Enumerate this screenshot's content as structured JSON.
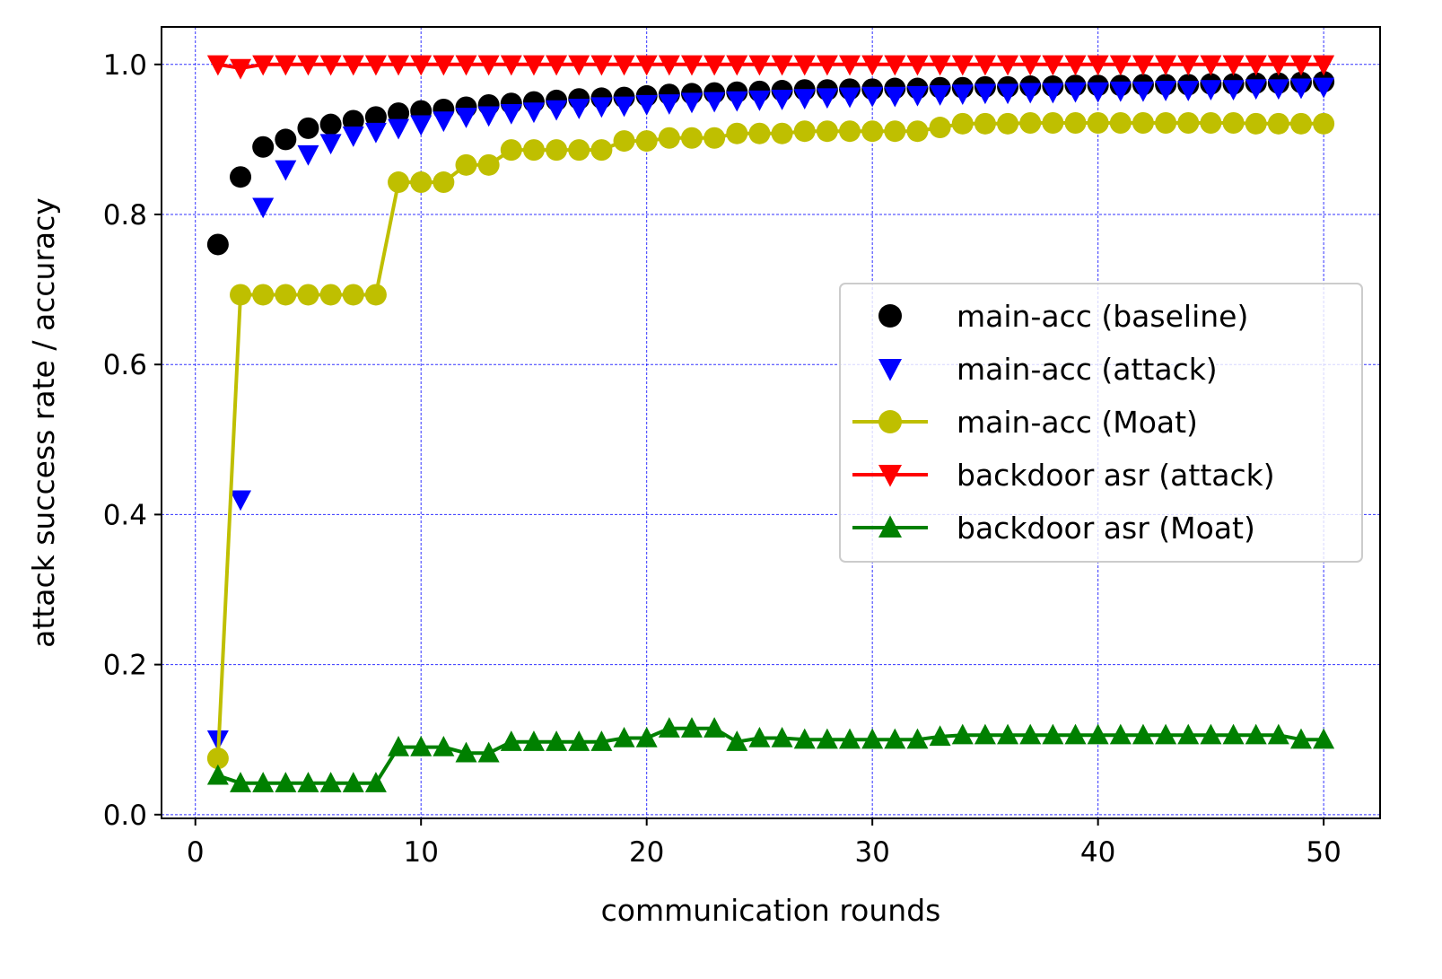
{
  "chart_data": {
    "type": "line",
    "title": "",
    "xlabel": "communication rounds",
    "ylabel": "attack success rate / accuracy",
    "xlim": [
      -1.5,
      52.5
    ],
    "ylim": [
      -0.005,
      1.05
    ],
    "xticks": [
      0,
      10,
      20,
      30,
      40,
      50
    ],
    "yticks": [
      0.0,
      0.2,
      0.4,
      0.6,
      0.8,
      1.0
    ],
    "xtick_labels": [
      "0",
      "10",
      "20",
      "30",
      "40",
      "50"
    ],
    "ytick_labels": [
      "0.0",
      "0.2",
      "0.4",
      "0.6",
      "0.8",
      "1.0"
    ],
    "grid": true,
    "grid_color": "#0000ff",
    "legend_position": "center-right",
    "x": [
      1,
      2,
      3,
      4,
      5,
      6,
      7,
      8,
      9,
      10,
      11,
      12,
      13,
      14,
      15,
      16,
      17,
      18,
      19,
      20,
      21,
      22,
      23,
      24,
      25,
      26,
      27,
      28,
      29,
      30,
      31,
      32,
      33,
      34,
      35,
      36,
      37,
      38,
      39,
      40,
      41,
      42,
      43,
      44,
      45,
      46,
      47,
      48,
      49,
      50
    ],
    "series": [
      {
        "name": "main-acc (baseline)",
        "color": "#000000",
        "marker": "circle",
        "line": false,
        "values": [
          0.76,
          0.85,
          0.89,
          0.9,
          0.915,
          0.92,
          0.925,
          0.93,
          0.935,
          0.938,
          0.94,
          0.943,
          0.946,
          0.948,
          0.95,
          0.952,
          0.954,
          0.955,
          0.956,
          0.958,
          0.96,
          0.961,
          0.962,
          0.963,
          0.964,
          0.965,
          0.966,
          0.966,
          0.967,
          0.967,
          0.968,
          0.968,
          0.969,
          0.969,
          0.97,
          0.97,
          0.971,
          0.971,
          0.972,
          0.972,
          0.972,
          0.973,
          0.973,
          0.973,
          0.974,
          0.974,
          0.975,
          0.975,
          0.976,
          0.977
        ]
      },
      {
        "name": "main-acc (attack)",
        "color": "#0000ff",
        "marker": "triangle-down",
        "line": false,
        "values": [
          0.1,
          0.42,
          0.81,
          0.86,
          0.88,
          0.895,
          0.905,
          0.91,
          0.915,
          0.92,
          0.925,
          0.93,
          0.932,
          0.935,
          0.937,
          0.94,
          0.942,
          0.944,
          0.945,
          0.947,
          0.948,
          0.95,
          0.951,
          0.952,
          0.953,
          0.954,
          0.955,
          0.956,
          0.957,
          0.958,
          0.958,
          0.959,
          0.96,
          0.961,
          0.962,
          0.962,
          0.963,
          0.963,
          0.964,
          0.964,
          0.965,
          0.965,
          0.966,
          0.966,
          0.967,
          0.967,
          0.968,
          0.968,
          0.969,
          0.97
        ]
      },
      {
        "name": "main-acc (Moat)",
        "color": "#bfbf00",
        "marker": "circle",
        "line": true,
        "values": [
          0.075,
          0.693,
          0.693,
          0.693,
          0.693,
          0.693,
          0.693,
          0.693,
          0.843,
          0.843,
          0.843,
          0.866,
          0.866,
          0.886,
          0.886,
          0.886,
          0.886,
          0.886,
          0.898,
          0.898,
          0.902,
          0.902,
          0.902,
          0.908,
          0.908,
          0.908,
          0.911,
          0.911,
          0.911,
          0.911,
          0.911,
          0.911,
          0.916,
          0.921,
          0.921,
          0.921,
          0.922,
          0.922,
          0.922,
          0.922,
          0.922,
          0.922,
          0.922,
          0.922,
          0.922,
          0.922,
          0.921,
          0.921,
          0.921,
          0.921
        ]
      },
      {
        "name": "backdoor asr (attack)",
        "color": "#ff0000",
        "marker": "triangle-down",
        "line": true,
        "values": [
          1.0,
          0.995,
          1.0,
          1.0,
          1.0,
          1.0,
          1.0,
          1.0,
          1.0,
          1.0,
          1.0,
          1.0,
          1.0,
          1.0,
          1.0,
          1.0,
          1.0,
          1.0,
          1.0,
          1.0,
          1.0,
          1.0,
          1.0,
          1.0,
          1.0,
          1.0,
          1.0,
          1.0,
          1.0,
          1.0,
          1.0,
          1.0,
          1.0,
          1.0,
          1.0,
          1.0,
          1.0,
          1.0,
          1.0,
          1.0,
          1.0,
          1.0,
          1.0,
          1.0,
          1.0,
          1.0,
          1.0,
          1.0,
          1.0,
          1.0
        ]
      },
      {
        "name": "backdoor asr (Moat)",
        "color": "#008000",
        "marker": "triangle-up",
        "line": true,
        "values": [
          0.052,
          0.042,
          0.042,
          0.042,
          0.042,
          0.042,
          0.042,
          0.042,
          0.09,
          0.09,
          0.09,
          0.082,
          0.082,
          0.097,
          0.097,
          0.097,
          0.097,
          0.097,
          0.102,
          0.102,
          0.115,
          0.115,
          0.115,
          0.097,
          0.102,
          0.102,
          0.1,
          0.1,
          0.1,
          0.1,
          0.1,
          0.1,
          0.104,
          0.106,
          0.106,
          0.106,
          0.106,
          0.106,
          0.106,
          0.106,
          0.106,
          0.106,
          0.106,
          0.106,
          0.106,
          0.106,
          0.106,
          0.106,
          0.1,
          0.1
        ]
      }
    ]
  }
}
